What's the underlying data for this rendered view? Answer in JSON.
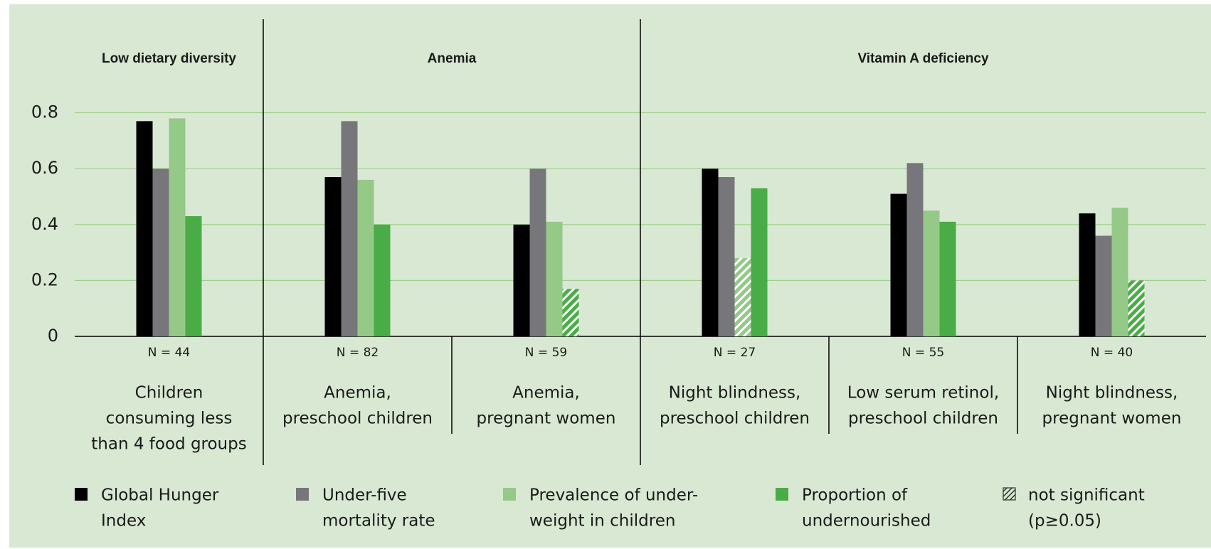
{
  "chart_data": {
    "type": "bar",
    "groups": [
      {
        "name": "Low dietary diversity",
        "categories": [
          0
        ]
      },
      {
        "name": "Anemia",
        "categories": [
          1,
          2
        ]
      },
      {
        "name": "Vitamin A deficiency",
        "categories": [
          3,
          4,
          5
        ]
      }
    ],
    "categories": [
      {
        "n": "N = 44",
        "label": [
          "Children",
          "consuming less",
          "than 4 food groups"
        ]
      },
      {
        "n": "N = 82",
        "label": [
          "Anemia,",
          "preschool children"
        ]
      },
      {
        "n": "N = 59",
        "label": [
          "Anemia,",
          "pregnant women"
        ]
      },
      {
        "n": "N = 27",
        "label": [
          "Night blindness,",
          "preschool children"
        ]
      },
      {
        "n": "N = 55",
        "label": [
          "Low serum retinol,",
          "preschool children"
        ]
      },
      {
        "n": "N = 40",
        "label": [
          "Night blindness,",
          "pregnant women"
        ]
      }
    ],
    "series": [
      {
        "name": [
          "Global Hunger",
          "Index"
        ],
        "color": "#000000",
        "values": [
          0.77,
          0.57,
          0.4,
          0.6,
          0.51,
          0.44
        ],
        "not_significant": [
          false,
          false,
          false,
          false,
          false,
          false
        ]
      },
      {
        "name": [
          "Under-five",
          "mortality rate"
        ],
        "color": "#77777b",
        "values": [
          0.6,
          0.77,
          0.6,
          0.57,
          0.62,
          0.36
        ],
        "not_significant": [
          false,
          false,
          false,
          false,
          false,
          false
        ]
      },
      {
        "name": [
          "Prevalence of under-",
          "weight in children"
        ],
        "color": "#94c987",
        "values": [
          0.78,
          0.56,
          0.41,
          0.28,
          0.45,
          0.46
        ],
        "not_significant": [
          false,
          false,
          false,
          true,
          false,
          false
        ]
      },
      {
        "name": [
          "Proportion of",
          "undernourished"
        ],
        "color": "#4aac46",
        "values": [
          0.43,
          0.4,
          0.17,
          0.53,
          0.41,
          0.2
        ],
        "not_significant": [
          false,
          false,
          true,
          false,
          false,
          true
        ]
      }
    ],
    "not_significant_legend": [
      "not significant",
      "(p≥0.05)"
    ],
    "ylim": [
      0,
      0.86
    ],
    "yticks": [
      0,
      0.2,
      0.4,
      0.6,
      0.8
    ],
    "grid": true,
    "grid_color": "#9ccf8a",
    "background": "#d9e8d3"
  }
}
